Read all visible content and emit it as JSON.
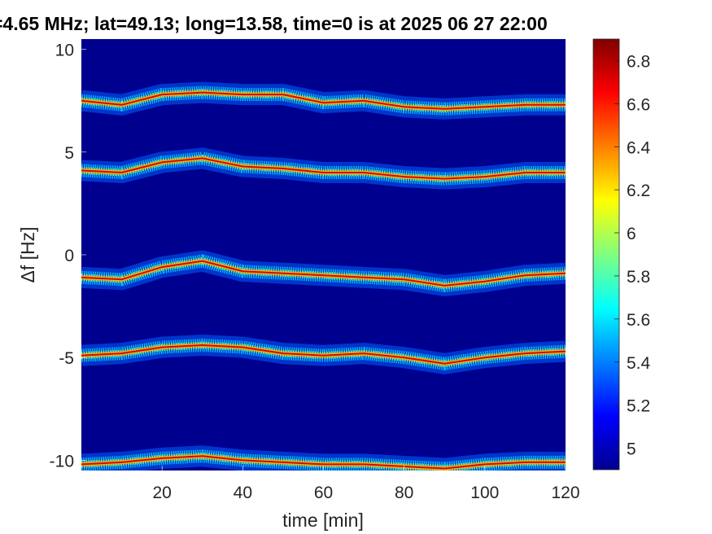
{
  "chart_data": {
    "type": "heatmap",
    "title": "=4.65 MHz;  lat=49.13; long=13.58, time=0 is at 2025 06 27 22:00",
    "xlabel": "time [min]",
    "ylabel": "Δf [Hz]",
    "xlim": [
      0,
      120
    ],
    "ylim": [
      -10.5,
      10.5
    ],
    "xticks": [
      20,
      40,
      60,
      80,
      100,
      120
    ],
    "xtick_labels": [
      "20",
      "40",
      "60",
      "80",
      "100",
      "120"
    ],
    "yticks": [
      10,
      5,
      0,
      -5,
      -10
    ],
    "ytick_labels": [
      "10",
      "5",
      "0",
      "-5",
      "-10"
    ],
    "colormap": "jet",
    "background_color": "#00008f",
    "clim": [
      4.9,
      6.9
    ],
    "colorbar_ticks": [
      6.8,
      6.6,
      6.4,
      6.2,
      6,
      5.8,
      5.6,
      5.4,
      5.2,
      5
    ],
    "colorbar_tick_labels": [
      "6.8",
      "6.6",
      "6.4",
      "6.2",
      "6",
      "5.8",
      "5.6",
      "5.4",
      "5.2",
      "5"
    ],
    "grid": false,
    "series": [
      {
        "time": [
          0,
          10,
          20,
          30,
          40,
          50,
          60,
          70,
          80,
          90,
          100,
          110,
          120
        ],
        "delta_f": [
          7.5,
          7.3,
          7.8,
          7.9,
          7.8,
          7.8,
          7.4,
          7.5,
          7.2,
          7.1,
          7.2,
          7.3,
          7.3
        ]
      },
      {
        "time": [
          0,
          10,
          20,
          30,
          40,
          50,
          60,
          70,
          80,
          90,
          100,
          110,
          120
        ],
        "delta_f": [
          4.1,
          4.0,
          4.5,
          4.7,
          4.3,
          4.2,
          4.0,
          4.0,
          3.8,
          3.7,
          3.8,
          4.0,
          4.0
        ]
      },
      {
        "time": [
          0,
          10,
          20,
          30,
          40,
          50,
          60,
          70,
          80,
          90,
          100,
          110,
          120
        ],
        "delta_f": [
          -1.1,
          -1.2,
          -0.6,
          -0.3,
          -0.8,
          -0.9,
          -1.0,
          -1.1,
          -1.2,
          -1.5,
          -1.3,
          -1.0,
          -0.9
        ]
      },
      {
        "time": [
          0,
          10,
          20,
          30,
          40,
          50,
          60,
          70,
          80,
          90,
          100,
          110,
          120
        ],
        "delta_f": [
          -4.9,
          -4.8,
          -4.5,
          -4.4,
          -4.5,
          -4.8,
          -4.9,
          -4.8,
          -5.0,
          -5.3,
          -5.0,
          -4.8,
          -4.7
        ]
      },
      {
        "time": [
          0,
          10,
          20,
          30,
          40,
          50,
          60,
          70,
          80,
          90,
          100,
          110,
          120
        ],
        "delta_f": [
          -10.2,
          -10.1,
          -9.9,
          -9.8,
          -10.0,
          -10.1,
          -10.2,
          -10.2,
          -10.3,
          -10.4,
          -10.2,
          -10.1,
          -10.1
        ]
      }
    ]
  }
}
